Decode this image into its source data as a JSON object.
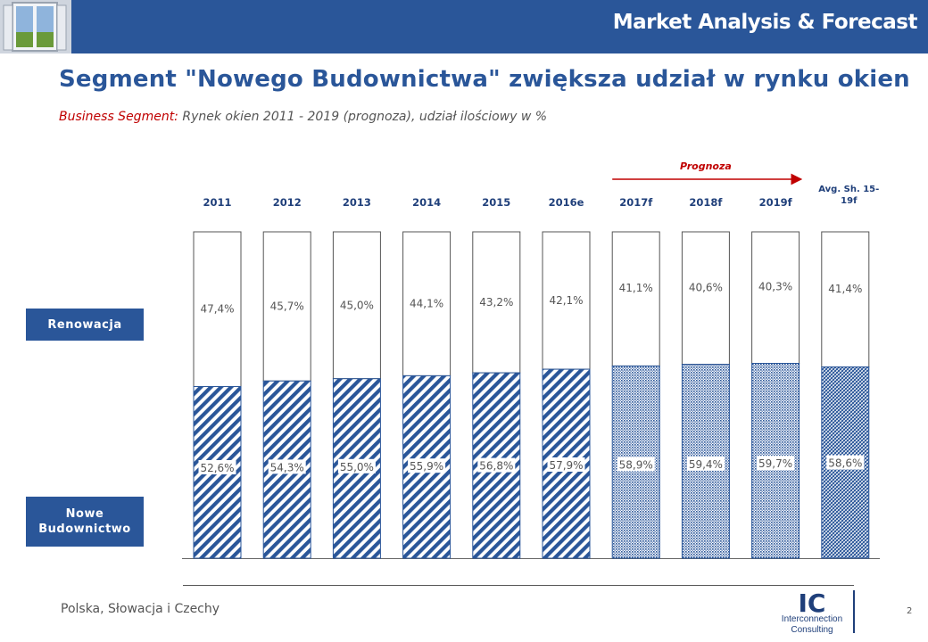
{
  "header": {
    "title": "Market Analysis & Forecast"
  },
  "slide": {
    "title": "Segment \"Nowego Budownictwa\" zwiększa udział w rynku okien",
    "subtitle_segment": "Business Segment:",
    "subtitle_rest": " Rynek okien 2011 - 2019 (prognoza), udział ilościowy w %"
  },
  "legend_labels": {
    "renovation": "Renowacja",
    "new_line1": "Nowe",
    "new_line2": "Budownictwo"
  },
  "footer": {
    "region": "Polska, Słowacja i Czechy",
    "page": "2"
  },
  "logo": {
    "mark": "IC",
    "line1": "Interconnection",
    "line2": "Consulting"
  },
  "colors": {
    "header": "#2a5699",
    "title": "#2a5699",
    "accent_red": "#c00000",
    "bar_hatch": "#2a5699"
  },
  "chart_data": {
    "type": "bar",
    "stacked": true,
    "categories": [
      "2011",
      "2012",
      "2013",
      "2014",
      "2015",
      "2016e",
      "2017f",
      "2018f",
      "2019f",
      "Avg. Sh. 15-19f"
    ],
    "category_label_lines": [
      [
        "2011"
      ],
      [
        "2012"
      ],
      [
        "2013"
      ],
      [
        "2014"
      ],
      [
        "2015"
      ],
      [
        "2016e"
      ],
      [
        "2017f"
      ],
      [
        "2018f"
      ],
      [
        "2019f"
      ],
      [
        "Avg. Sh. 15-",
        "19f"
      ]
    ],
    "series": [
      {
        "name": "Nowe Budownictwo",
        "values": [
          52.6,
          54.3,
          55.0,
          55.9,
          56.8,
          57.9,
          58.9,
          59.4,
          59.7,
          58.6
        ],
        "labels": [
          "52,6%",
          "54,3%",
          "55,0%",
          "55,9%",
          "56,8%",
          "57,9%",
          "58,9%",
          "59,4%",
          "59,7%",
          "58,6%"
        ]
      },
      {
        "name": "Renowacja",
        "values": [
          47.4,
          45.7,
          45.0,
          44.1,
          43.2,
          42.1,
          41.1,
          40.6,
          40.3,
          41.4
        ],
        "labels": [
          "47,4%",
          "45,7%",
          "45,0%",
          "44,1%",
          "43,2%",
          "42,1%",
          "41,1%",
          "40,6%",
          "40,3%",
          "41,4%"
        ]
      }
    ],
    "patterns": [
      "diag",
      "diag",
      "diag",
      "diag",
      "diag",
      "diag",
      "dots",
      "dots",
      "dots",
      "cross"
    ],
    "forecast_annotation": {
      "label": "Prognoza",
      "from_category": "2017f",
      "to_category": "2019f"
    },
    "ylim": [
      0,
      100
    ]
  }
}
